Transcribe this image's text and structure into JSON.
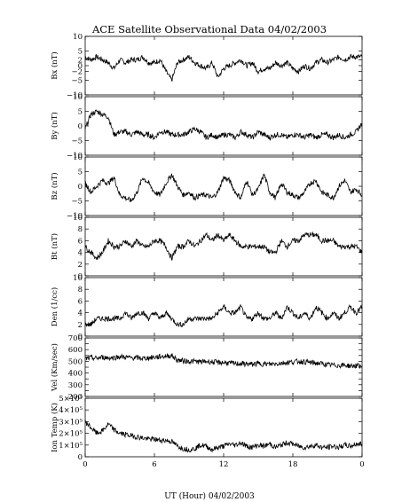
{
  "chart_data": {
    "type": "line",
    "title": "ACE Satellite Observational Data   04/02/2003",
    "xlabel": "UT (Hour)   04/02/2003",
    "x_ticks": [
      "0",
      "6",
      "12",
      "18",
      "0"
    ],
    "xlim": [
      0,
      24
    ],
    "grid": false,
    "line_color": "#000000",
    "panels": [
      {
        "id": "bx",
        "ylabel": "Bx (nT)",
        "ylim": [
          -10,
          10
        ],
        "ticks": [
          -10,
          -5,
          -2,
          0,
          2,
          5,
          10
        ],
        "tick_labels": [
          "−10",
          "−5",
          "−2",
          "0",
          "2",
          "5",
          "10"
        ],
        "series": {
          "x": [
            0,
            0.5,
            1,
            1.5,
            2,
            2.5,
            3,
            3.5,
            4,
            4.5,
            5,
            5.5,
            6,
            6.5,
            7,
            7.5,
            8,
            8.5,
            9,
            9.5,
            10,
            10.5,
            11,
            11.5,
            12,
            12.5,
            13,
            13.5,
            14,
            14.5,
            15,
            15.5,
            16,
            16.5,
            17,
            17.5,
            18,
            18.5,
            19,
            19.5,
            20,
            20.5,
            21,
            21.5,
            22,
            22.5,
            23,
            23.5,
            24
          ],
          "y": [
            3,
            2,
            3,
            2,
            1,
            -1,
            2,
            1,
            2,
            2,
            3,
            1,
            1,
            2,
            -2,
            -5,
            1,
            2,
            3,
            1,
            0,
            -1,
            1,
            -4,
            -1,
            0,
            1,
            2,
            0,
            1,
            -2,
            -1,
            -1,
            1,
            0,
            1,
            -1,
            -2,
            0,
            -1,
            1,
            2,
            1,
            2,
            3,
            2,
            3,
            3,
            3
          ]
        }
      },
      {
        "id": "by",
        "ylabel": "By (nT)",
        "ylim": [
          -10,
          10
        ],
        "ticks": [
          -10,
          -5,
          0,
          5,
          10
        ],
        "tick_labels": [
          "−10",
          "−5",
          "0",
          "5",
          "10"
        ],
        "series": {
          "x": [
            0,
            0.5,
            1,
            1.5,
            2,
            2.5,
            3,
            3.5,
            4,
            4.5,
            5,
            5.5,
            6,
            6.5,
            7,
            7.5,
            8,
            8.5,
            9,
            9.5,
            10,
            10.5,
            11,
            11.5,
            12,
            12.5,
            13,
            13.5,
            14,
            14.5,
            15,
            15.5,
            16,
            16.5,
            17,
            17.5,
            18,
            18.5,
            19,
            19.5,
            20,
            20.5,
            21,
            21.5,
            22,
            22.5,
            23,
            23.5,
            24
          ],
          "y": [
            -1,
            4,
            5,
            4,
            3,
            -3,
            -2,
            -2,
            -3,
            -2,
            -3,
            -3,
            -4,
            -2,
            -2,
            -3,
            -3,
            -3,
            -2,
            -1,
            -2,
            -4,
            -3,
            -4,
            -3,
            -3,
            -4,
            -2,
            -3,
            -4,
            -2,
            -3,
            -4,
            -3,
            -3,
            -4,
            -3,
            -3,
            -4,
            -3,
            -4,
            -3,
            -3,
            -4,
            -3,
            -4,
            -3,
            -2,
            1
          ]
        }
      },
      {
        "id": "bz",
        "ylabel": "Bz (nT)",
        "ylim": [
          -10,
          10
        ],
        "ticks": [
          -10,
          -5,
          0,
          5,
          10
        ],
        "tick_labels": [
          "−10",
          "−5",
          "0",
          "5",
          "10"
        ],
        "series": {
          "x": [
            0,
            0.5,
            1,
            1.5,
            2,
            2.5,
            3,
            3.5,
            4,
            4.5,
            5,
            5.5,
            6,
            6.5,
            7,
            7.5,
            8,
            8.5,
            9,
            9.5,
            10,
            10.5,
            11,
            11.5,
            12,
            12.5,
            13,
            13.5,
            14,
            14.5,
            15,
            15.5,
            16,
            16.5,
            17,
            17.5,
            18,
            18.5,
            19,
            19.5,
            20,
            20.5,
            21,
            21.5,
            22,
            22.5,
            23,
            23.5,
            24
          ],
          "y": [
            1,
            -2,
            0,
            2,
            1,
            3,
            -3,
            -4,
            -5,
            -2,
            3,
            1,
            -2,
            -3,
            1,
            4,
            0,
            -3,
            -2,
            -4,
            -3,
            -3,
            -4,
            -2,
            3,
            2,
            -2,
            -4,
            2,
            -3,
            -1,
            4,
            -2,
            -4,
            1,
            -2,
            -3,
            -4,
            -2,
            1,
            2,
            -2,
            -3,
            -4,
            0,
            2,
            -2,
            -1,
            -3
          ]
        }
      },
      {
        "id": "bt",
        "ylabel": "Bt (nT)",
        "ylim": [
          0,
          10
        ],
        "ticks": [
          0,
          2,
          4,
          6,
          8,
          10
        ],
        "tick_labels": [
          "0",
          "2",
          "4",
          "6",
          "8",
          "10"
        ],
        "series": {
          "x": [
            0,
            0.5,
            1,
            1.5,
            2,
            2.5,
            3,
            3.5,
            4,
            4.5,
            5,
            5.5,
            6,
            6.5,
            7,
            7.5,
            8,
            8.5,
            9,
            9.5,
            10,
            10.5,
            11,
            11.5,
            12,
            12.5,
            13,
            13.5,
            14,
            14.5,
            15,
            15.5,
            16,
            16.5,
            17,
            17.5,
            18,
            18.5,
            19,
            19.5,
            20,
            20.5,
            21,
            21.5,
            22,
            22.5,
            23,
            23.5,
            24
          ],
          "y": [
            5,
            4,
            3,
            4,
            6,
            5,
            5,
            6,
            5,
            6,
            5,
            5,
            6,
            6,
            5,
            3,
            5,
            5,
            6,
            5,
            6,
            7,
            6,
            7,
            6,
            7,
            6,
            5,
            5,
            5,
            5,
            5,
            4,
            4,
            6,
            5,
            6,
            6,
            7,
            7,
            7,
            6,
            6,
            6,
            5,
            5,
            5,
            5,
            4
          ]
        }
      },
      {
        "id": "den",
        "ylabel": "Den (1/cc)",
        "ylim": [
          0,
          10
        ],
        "ticks": [
          0,
          2,
          4,
          6,
          8,
          10
        ],
        "tick_labels": [
          "0",
          "2",
          "4",
          "6",
          "8",
          "10"
        ],
        "series": {
          "x": [
            0,
            0.5,
            1,
            1.5,
            2,
            2.5,
            3,
            3.5,
            4,
            4.5,
            5,
            5.5,
            6,
            6.5,
            7,
            7.5,
            8,
            8.5,
            9,
            9.5,
            10,
            10.5,
            11,
            11.5,
            12,
            12.5,
            13,
            13.5,
            14,
            14.5,
            15,
            15.5,
            16,
            16.5,
            17,
            17.5,
            18,
            18.5,
            19,
            19.5,
            20,
            20.5,
            21,
            21.5,
            22,
            22.5,
            23,
            23.5,
            24
          ],
          "y": [
            2,
            2,
            3,
            3,
            3,
            3,
            3,
            4,
            3,
            4,
            4,
            3,
            4,
            3,
            4,
            3,
            2,
            2,
            3,
            3,
            3,
            3,
            3,
            4,
            5,
            4,
            4,
            5,
            3,
            3,
            4,
            3,
            3,
            4,
            3,
            5,
            4,
            3,
            4,
            3,
            5,
            4,
            3,
            4,
            3,
            4,
            5,
            4,
            5
          ]
        }
      },
      {
        "id": "vel",
        "ylabel": "Vel (Km/sec)",
        "ylim": [
          200,
          700
        ],
        "ticks": [
          200,
          250,
          300,
          350,
          400,
          450,
          500,
          550,
          600,
          650,
          700
        ],
        "tick_labels": [
          "200",
          "",
          "300",
          "",
          "400",
          "",
          "500",
          "",
          "600",
          "",
          "700"
        ],
        "series": {
          "x": [
            0,
            0.5,
            1,
            1.5,
            2,
            2.5,
            3,
            3.5,
            4,
            4.5,
            5,
            5.5,
            6,
            6.5,
            7,
            7.5,
            8,
            8.5,
            9,
            9.5,
            10,
            10.5,
            11,
            11.5,
            12,
            12.5,
            13,
            13.5,
            14,
            14.5,
            15,
            15.5,
            16,
            16.5,
            17,
            17.5,
            18,
            18.5,
            19,
            19.5,
            20,
            20.5,
            21,
            21.5,
            22,
            22.5,
            23,
            23.5,
            24
          ],
          "y": [
            520,
            530,
            525,
            535,
            530,
            530,
            540,
            535,
            530,
            530,
            525,
            530,
            535,
            540,
            545,
            550,
            510,
            505,
            500,
            500,
            495,
            500,
            495,
            490,
            490,
            485,
            480,
            480,
            478,
            475,
            480,
            478,
            475,
            480,
            485,
            490,
            495,
            500,
            495,
            490,
            485,
            480,
            470,
            468,
            465,
            468,
            460,
            462,
            460
          ]
        }
      },
      {
        "id": "temp",
        "ylabel": "Ion Temp (K)",
        "ylim": [
          0,
          500000
        ],
        "ticks": [
          0,
          100000,
          200000,
          300000,
          400000,
          500000
        ],
        "tick_labels": [
          "0",
          "1×10⁵",
          "2×10⁵",
          "3×10⁵",
          "4×10⁵",
          "5×10⁵"
        ],
        "series": {
          "x": [
            0,
            0.5,
            1,
            1.5,
            2,
            2.5,
            3,
            3.5,
            4,
            4.5,
            5,
            5.5,
            6,
            6.5,
            7,
            7.5,
            8,
            8.5,
            9,
            9.5,
            10,
            10.5,
            11,
            11.5,
            12,
            12.5,
            13,
            13.5,
            14,
            14.5,
            15,
            15.5,
            16,
            16.5,
            17,
            17.5,
            18,
            18.5,
            19,
            19.5,
            20,
            20.5,
            21,
            21.5,
            22,
            22.5,
            23,
            23.5,
            24
          ],
          "y": [
            300000,
            250000,
            200000,
            220000,
            280000,
            230000,
            200000,
            190000,
            180000,
            170000,
            160000,
            150000,
            150000,
            140000,
            140000,
            130000,
            90000,
            70000,
            60000,
            70000,
            100000,
            90000,
            60000,
            80000,
            90000,
            110000,
            100000,
            120000,
            90000,
            80000,
            100000,
            90000,
            110000,
            80000,
            100000,
            120000,
            110000,
            90000,
            80000,
            90000,
            100000,
            80000,
            80000,
            90000,
            80000,
            100000,
            90000,
            110000,
            110000
          ]
        }
      }
    ]
  }
}
